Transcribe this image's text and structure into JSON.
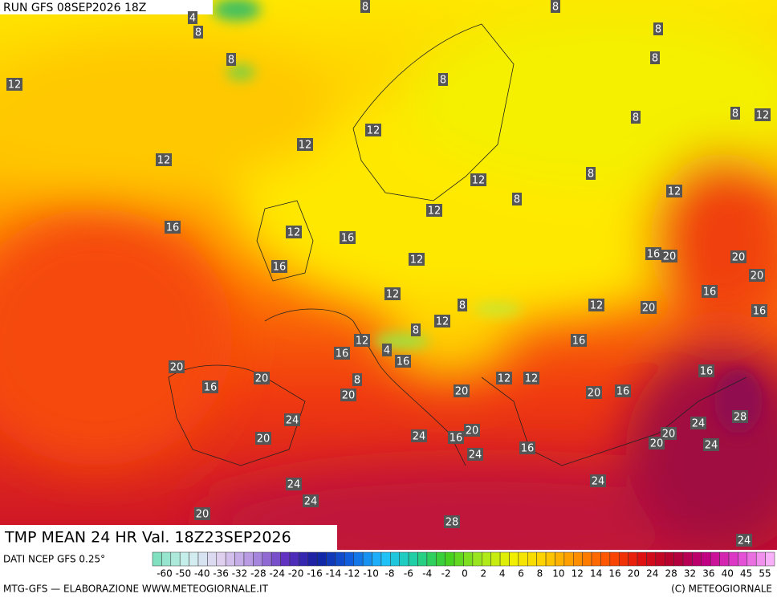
{
  "header": {
    "run": "RUN GFS 08SEP2026 18Z"
  },
  "map": {
    "title": "TMP MEAN 24 HR Val. 18Z23SEP2026",
    "contour_labels": [
      "8",
      "8",
      "4",
      "8",
      "8",
      "8",
      "8",
      "12",
      "8",
      "8",
      "8",
      "12",
      "12",
      "12",
      "12",
      "12",
      "8",
      "12",
      "8",
      "12",
      "16",
      "12",
      "16",
      "12",
      "16",
      "20",
      "20",
      "16",
      "20",
      "12",
      "16",
      "8",
      "12",
      "20",
      "16",
      "12",
      "8",
      "12",
      "16",
      "4",
      "16",
      "16",
      "20",
      "20",
      "16",
      "12",
      "12",
      "16",
      "8",
      "20",
      "20",
      "20",
      "16",
      "24",
      "28",
      "24",
      "20",
      "24",
      "16",
      "20",
      "20",
      "20",
      "24",
      "24",
      "16",
      "24",
      "24",
      "24",
      "20",
      "28",
      "24"
    ]
  },
  "legend": {
    "source": "DATI NCEP GFS 0.25°",
    "labels": [
      "-60",
      "-50",
      "-40",
      "-36",
      "-32",
      "-28",
      "-24",
      "-20",
      "-16",
      "-14",
      "-12",
      "-10",
      "-8",
      "-6",
      "-4",
      "-2",
      "0",
      "2",
      "4",
      "6",
      "8",
      "10",
      "12",
      "14",
      "16",
      "20",
      "24",
      "28",
      "32",
      "36",
      "40",
      "45",
      "55"
    ]
  },
  "footer": {
    "credit": "MTG-GFS — ELABORAZIONE WWW.METEOGIORNALE.IT",
    "copyright": "(C) METEOGIORNALE"
  }
}
